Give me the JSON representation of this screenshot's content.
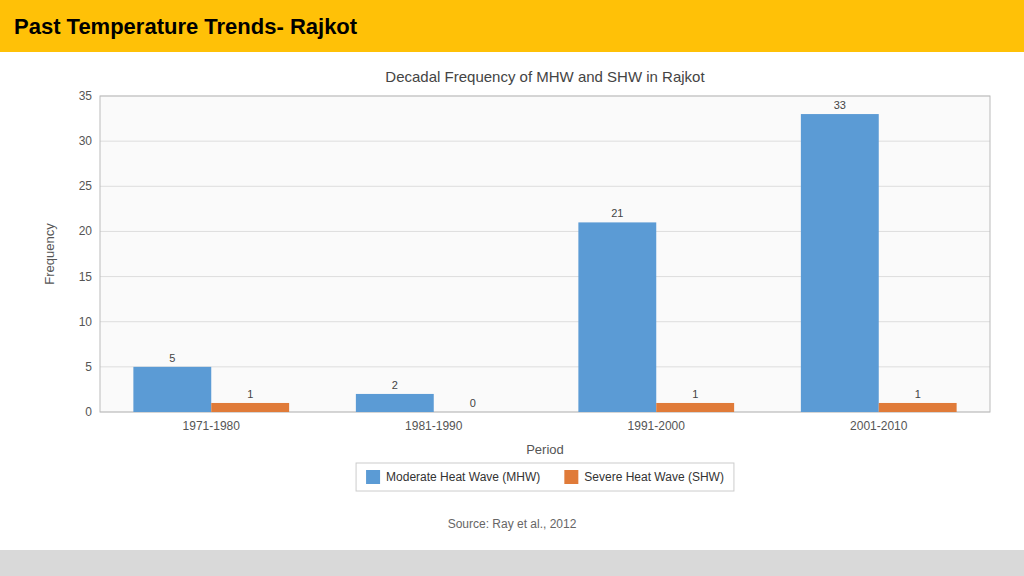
{
  "chart_data": {
    "type": "bar",
    "title": "Past Temperature Trends- Rajkot",
    "subtitle": "Decadal Frequency of MHW and SHW in Rajkot",
    "annotations": [
      "Source: Ray et al., 2012"
    ],
    "x_label": "Period",
    "y_label": "Frequency",
    "categories": [
      "1971-1980",
      "1981-1990",
      "1991-2000",
      "2001-2010"
    ],
    "series": [
      {
        "name": "Moderate Heat Wave (MHW)",
        "color": "#5b9bd5",
        "values": [
          5,
          2,
          21,
          33
        ]
      },
      {
        "name": "Severe Heat Wave (SHW)",
        "color": "#e07b39",
        "values": [
          1,
          0,
          1,
          1
        ]
      }
    ],
    "ylim": [
      0,
      35
    ],
    "yticks": [
      0,
      5,
      10,
      15,
      20,
      25,
      30,
      35
    ],
    "grid": true,
    "legend": "bottom",
    "data_labels": true
  }
}
